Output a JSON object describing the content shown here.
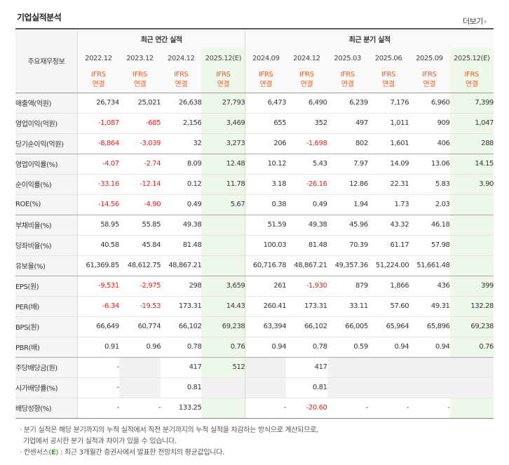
{
  "page": {
    "title": "기업실적분석",
    "more_label": "더보기",
    "more_icon": "chevron-right-icon"
  },
  "table": {
    "row_header": "주요재무정보",
    "group_annual": "최근 연간 실적",
    "group_quarter": "최근 분기 실적",
    "periods": [
      "2022.12",
      "2023.12",
      "2024.12",
      "2025.12(E)",
      "2024.09",
      "2024.12",
      "2025.03",
      "2025.06",
      "2025.09",
      "2025.12(E)"
    ],
    "standard": [
      "IFRS",
      "IFRS",
      "IFRS",
      "IFRS",
      "IFRS",
      "IFRS",
      "IFRS",
      "IFRS",
      "IFRS",
      "IFRS"
    ],
    "basis": [
      "연결",
      "연결",
      "연결",
      "연결",
      "연결",
      "연결",
      "연결",
      "연결",
      "연결",
      "연결"
    ],
    "rows": [
      {
        "label": "매출액(억원)",
        "values": [
          "26,734",
          "25,021",
          "26,638",
          "27,793",
          "6,473",
          "6,490",
          "6,239",
          "7,176",
          "6,960",
          "7,399"
        ]
      },
      {
        "label": "영업이익(억원)",
        "values": [
          "-1,087",
          "-685",
          "2,156",
          "3,469",
          "655",
          "352",
          "497",
          "1,011",
          "909",
          "1,047"
        ]
      },
      {
        "label": "당기순이익(억원)",
        "values": [
          "-8,864",
          "-3,039",
          "32",
          "3,273",
          "206",
          "-1,698",
          "802",
          "1,601",
          "406",
          "288"
        ]
      },
      {
        "label": "영업이익률(%)",
        "values": [
          "-4.07",
          "-2.74",
          "8.09",
          "12.48",
          "10.12",
          "5.43",
          "7.97",
          "14.09",
          "13.06",
          "14.15"
        ]
      },
      {
        "label": "순이익률(%)",
        "values": [
          "-33.16",
          "-12.14",
          "0.12",
          "11.78",
          "3.18",
          "-26.16",
          "12.86",
          "22.31",
          "5.83",
          "3.90"
        ]
      },
      {
        "label": "ROE(%)",
        "values": [
          "-14.56",
          "-4.90",
          "0.49",
          "5.67",
          "0.38",
          "0.49",
          "1.94",
          "1.73",
          "2.03",
          ""
        ]
      },
      {
        "label": "부채비율(%)",
        "values": [
          "58.95",
          "55.85",
          "49.38",
          "",
          "51.59",
          "49.38",
          "45.96",
          "43.32",
          "46.18",
          ""
        ]
      },
      {
        "label": "당좌비율(%)",
        "values": [
          "40.58",
          "45.84",
          "81.48",
          "",
          "100.03",
          "81.48",
          "70.39",
          "61.17",
          "57.98",
          ""
        ]
      },
      {
        "label": "유보율(%)",
        "values": [
          "61,369.85",
          "48,612.75",
          "48,867.21",
          "",
          "60,716.78",
          "48,867.21",
          "49,357.36",
          "51,224.00",
          "51,661.48",
          ""
        ]
      },
      {
        "label": "EPS(원)",
        "values": [
          "-9,531",
          "-2,975",
          "298",
          "3,659",
          "261",
          "-1,930",
          "879",
          "1,866",
          "436",
          "399"
        ]
      },
      {
        "label": "PER(배)",
        "values": [
          "-6.34",
          "-19.53",
          "173.31",
          "14.43",
          "260.41",
          "173.31",
          "33.11",
          "57.60",
          "49.31",
          "132.28"
        ]
      },
      {
        "label": "BPS(원)",
        "values": [
          "66,649",
          "60,774",
          "66,102",
          "69,238",
          "63,394",
          "66,102",
          "66,005",
          "65,964",
          "65,896",
          "69,238"
        ]
      },
      {
        "label": "PBR(배)",
        "values": [
          "0.91",
          "0.96",
          "0.78",
          "0.76",
          "0.94",
          "0.78",
          "0.59",
          "0.94",
          "0.94",
          "0.76"
        ]
      },
      {
        "label": "주당배당금(원)",
        "values": [
          "-",
          "",
          "417",
          "512",
          "",
          "417",
          "",
          "",
          "",
          ""
        ]
      },
      {
        "label": "시가배당률(%)",
        "values": [
          "-",
          "",
          "0.81",
          "",
          "",
          "0.81",
          "",
          "",
          "",
          ""
        ]
      },
      {
        "label": "배당성향(%)",
        "values": [
          "-",
          "-",
          "133.25",
          "",
          "-",
          "-20.60",
          "-",
          "-",
          "-",
          ""
        ]
      }
    ]
  },
  "notes": {
    "line1": "분기 실적은 해당 분기까지의 누적 실적에서 직전 분기까지의 누적 실적을 차감하는 방식으로 계산되므로,",
    "line2": "기업에서 공시한 분기 실적과 차이가 있을 수 있습니다.",
    "line3_prefix": "컨센서스(",
    "line3_e": "E",
    "line3_suffix": ") : 최근 3개월간 증권사에서 발표한 전망치의 평균값입니다."
  },
  "colors": {
    "negative": "#e02020",
    "ifrs": "#f05a1e",
    "estimate_bg": "#eef8ea",
    "estimate_text": "#3aa335"
  }
}
